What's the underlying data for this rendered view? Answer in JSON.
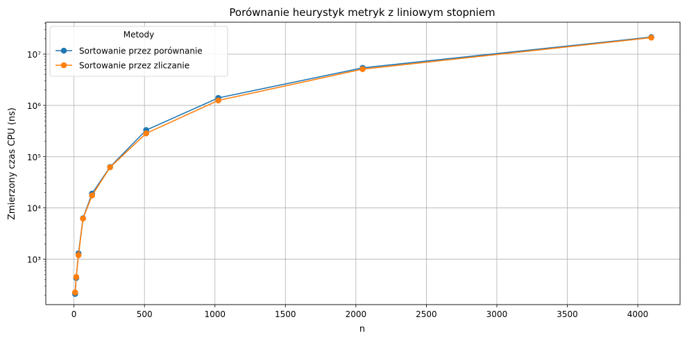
{
  "chart_data": {
    "type": "line",
    "title": "Porównanie heurystyk metryk z liniowym stopniem",
    "xlabel": "n",
    "ylabel": "Zmierzony czas CPU (ns)",
    "x": [
      8,
      16,
      32,
      64,
      128,
      256,
      512,
      1024,
      2048,
      4096
    ],
    "xlim": [
      -200,
      4300
    ],
    "ylim": [
      130,
      42000000
    ],
    "yscale": "log",
    "x_ticks": [
      0,
      500,
      1000,
      1500,
      2000,
      2500,
      3000,
      3500,
      4000
    ],
    "x_tick_labels": [
      "0",
      "500",
      "1000",
      "1500",
      "2000",
      "2500",
      "3000",
      "3500",
      "4000"
    ],
    "y_ticks": [
      1000,
      10000,
      100000,
      1000000,
      10000000
    ],
    "y_tick_labels": [
      "10³",
      "10⁴",
      "10⁵",
      "10⁶",
      "10⁷"
    ],
    "grid": true,
    "legend": {
      "title": "Metody",
      "position": "top-left"
    },
    "series": [
      {
        "name": "Sortowanie przez porównanie",
        "color": "#1f77b4",
        "values": [
          210,
          430,
          1300,
          6300,
          19000,
          63000,
          330000,
          1400000,
          5400000,
          21500000
        ]
      },
      {
        "name": "Sortowanie przez zliczanie",
        "color": "#ff7f0e",
        "values": [
          225,
          450,
          1200,
          6200,
          17500,
          62000,
          285000,
          1250000,
          5100000,
          21000000
        ]
      }
    ]
  }
}
